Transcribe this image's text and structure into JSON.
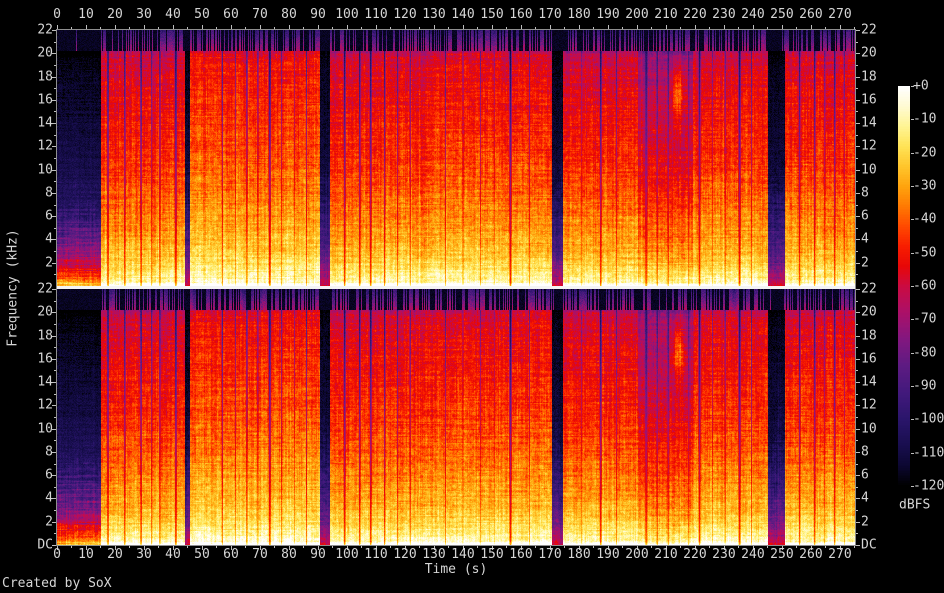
{
  "figure": {
    "credit": "Created by SoX",
    "background": "#000000",
    "label_color": "#d6d6d6",
    "axis_color": "#8f8f8f",
    "tick_color": "#bdbdbd",
    "separator_color": "#f4f4f4"
  },
  "chart_data": {
    "type": "heatmap",
    "subtype": "stereo-audio-spectrogram",
    "channels": 2,
    "xlabel": "Time (s)",
    "ylabel": "Frequency (kHz)",
    "x_ticks": [
      0,
      10,
      20,
      30,
      40,
      50,
      60,
      70,
      80,
      90,
      100,
      110,
      120,
      130,
      140,
      150,
      160,
      170,
      180,
      190,
      200,
      210,
      220,
      230,
      240,
      250,
      260,
      270
    ],
    "x_minor_step_s": 5,
    "duration_s": 275.2,
    "freq_max_khz": 22,
    "y_major_ticks_khz": [
      22,
      20,
      18,
      16,
      14,
      12,
      10,
      8,
      6,
      4,
      2
    ],
    "y_minor_step_khz": 1,
    "y_dc_label": "DC",
    "colorbar": {
      "label": "dBFS",
      "max_db": 0,
      "min_db": -120,
      "tick_labels": [
        "+0",
        "-10",
        "-20",
        "-30",
        "-40",
        "-50",
        "-60",
        "-70",
        "-80",
        "-90",
        "-100",
        "-110",
        "-120"
      ],
      "stops": [
        [
          0,
          "#ffffff"
        ],
        [
          -6,
          "#fffad2"
        ],
        [
          -12,
          "#fff493"
        ],
        [
          -18,
          "#ffe356"
        ],
        [
          -24,
          "#ffc62c"
        ],
        [
          -30,
          "#ffa40e"
        ],
        [
          -36,
          "#ff7a02"
        ],
        [
          -42,
          "#ff4a00"
        ],
        [
          -48,
          "#f81e00"
        ],
        [
          -54,
          "#e70707"
        ],
        [
          -60,
          "#cb0b41"
        ],
        [
          -68,
          "#ab1068"
        ],
        [
          -76,
          "#82177f"
        ],
        [
          -84,
          "#5d1b82"
        ],
        [
          -92,
          "#42197c"
        ],
        [
          -100,
          "#2a156b"
        ],
        [
          -108,
          "#180e4e"
        ],
        [
          -114,
          "#0c0732"
        ],
        [
          -120,
          "#000000"
        ]
      ]
    },
    "model": {
      "lowpass_khz": 20.25,
      "spectral_base_db": [
        [
          0,
          0
        ],
        [
          0.3,
          -4
        ],
        [
          1,
          -10
        ],
        [
          2,
          -17
        ],
        [
          3,
          -22
        ],
        [
          5,
          -28
        ],
        [
          8,
          -36
        ],
        [
          11,
          -42
        ],
        [
          14,
          -46
        ],
        [
          17,
          -50
        ],
        [
          19,
          -53
        ],
        [
          19.9,
          -57
        ],
        [
          20.25,
          -64
        ]
      ],
      "segments": [
        {
          "t0": 0,
          "t1": 15.2,
          "level": -24,
          "slope": 2.4,
          "floor": -104,
          "streak": 0.05,
          "tag": "quiet-intro"
        },
        {
          "t0": 15.2,
          "t1": 44.2,
          "level": -5,
          "slope": 1.0,
          "floor": -118,
          "streak": 0.5,
          "tag": "music"
        },
        {
          "t0": 44.2,
          "t1": 45.9,
          "level": -58,
          "slope": 1.35,
          "floor": -112,
          "streak": 0.06,
          "tag": "silence"
        },
        {
          "t0": 45.9,
          "t1": 90.6,
          "level": -2.5,
          "slope": 0.93,
          "floor": -118,
          "streak": 0.55,
          "tag": "music"
        },
        {
          "t0": 90.6,
          "t1": 94.2,
          "level": -58,
          "slope": 1.35,
          "floor": -112,
          "streak": 0.06,
          "tag": "silence"
        },
        {
          "t0": 94.2,
          "t1": 127.3,
          "level": -4.5,
          "slope": 1.0,
          "floor": -118,
          "streak": 0.5,
          "tag": "music"
        },
        {
          "t0": 127.3,
          "t1": 170.8,
          "level": -4,
          "slope": 0.97,
          "floor": -118,
          "streak": 0.52,
          "tag": "music"
        },
        {
          "t0": 170.8,
          "t1": 174.6,
          "level": -60,
          "slope": 1.35,
          "floor": -112,
          "streak": 0.05,
          "tag": "silence"
        },
        {
          "t0": 174.6,
          "t1": 200.5,
          "level": -5,
          "slope": 1.0,
          "floor": -118,
          "streak": 0.5,
          "tag": "music"
        },
        {
          "t0": 200.5,
          "t1": 219.5,
          "level": -8,
          "slope": 1.15,
          "floor": -116,
          "streak": 0.45,
          "tag": "music-soft-highs"
        },
        {
          "t0": 219.5,
          "t1": 245.2,
          "level": -4.5,
          "slope": 0.98,
          "floor": -118,
          "streak": 0.52,
          "tag": "music"
        },
        {
          "t0": 245.2,
          "t1": 250.9,
          "level": -58,
          "slope": 1.35,
          "floor": -112,
          "streak": 0.05,
          "tag": "silence"
        },
        {
          "t0": 250.9,
          "t1": 275.2,
          "level": -4.5,
          "slope": 0.98,
          "floor": -118,
          "streak": 0.5,
          "tag": "music"
        }
      ],
      "gaps": [
        [
          17.6,
          0.5,
          0.8
        ],
        [
          23.4,
          0.45,
          0.7
        ],
        [
          29.0,
          0.5,
          0.75
        ],
        [
          32.7,
          0.35,
          0.6
        ],
        [
          35.5,
          0.4,
          0.7
        ],
        [
          41.0,
          0.6,
          0.8
        ],
        [
          57.0,
          0.4,
          0.6
        ],
        [
          61.5,
          0.3,
          0.45
        ],
        [
          65.5,
          0.4,
          0.65
        ],
        [
          69.3,
          0.35,
          0.6
        ],
        [
          73.4,
          0.7,
          0.8
        ],
        [
          77.5,
          0.35,
          0.5
        ],
        [
          82.0,
          0.3,
          0.4
        ],
        [
          86.0,
          0.35,
          0.55
        ],
        [
          99.2,
          0.6,
          0.8
        ],
        [
          104.4,
          0.5,
          0.75
        ],
        [
          108.2,
          0.6,
          0.8
        ],
        [
          113.0,
          0.45,
          0.7
        ],
        [
          117.5,
          0.35,
          0.6
        ],
        [
          121.8,
          0.35,
          0.55
        ],
        [
          134.0,
          0.35,
          0.5
        ],
        [
          140.0,
          0.3,
          0.4
        ],
        [
          146.0,
          0.3,
          0.4
        ],
        [
          151.0,
          0.3,
          0.4
        ],
        [
          156.4,
          0.7,
          0.85
        ],
        [
          163.0,
          0.3,
          0.45
        ],
        [
          181.0,
          0.3,
          0.45
        ],
        [
          187.5,
          0.6,
          0.8
        ],
        [
          193.0,
          0.35,
          0.5
        ],
        [
          203.2,
          0.8,
          0.7
        ],
        [
          207.0,
          0.45,
          0.6
        ],
        [
          210.8,
          0.45,
          0.6
        ],
        [
          217.9,
          0.35,
          0.55
        ],
        [
          221.6,
          0.6,
          0.75
        ],
        [
          226.0,
          0.3,
          0.4
        ],
        [
          230.4,
          0.35,
          0.55
        ],
        [
          235.4,
          0.7,
          0.8
        ],
        [
          239.5,
          0.35,
          0.5
        ],
        [
          256.1,
          0.5,
          0.7
        ],
        [
          261.3,
          0.5,
          0.7
        ],
        [
          264.8,
          0.35,
          0.55
        ],
        [
          268.2,
          0.5,
          0.7
        ],
        [
          271.5,
          0.35,
          0.5
        ]
      ],
      "events": [
        {
          "t": 214.3,
          "sigma_t": 1.5,
          "f": 16.6,
          "sigma_f": 1.6,
          "amp": 26
        }
      ]
    }
  }
}
